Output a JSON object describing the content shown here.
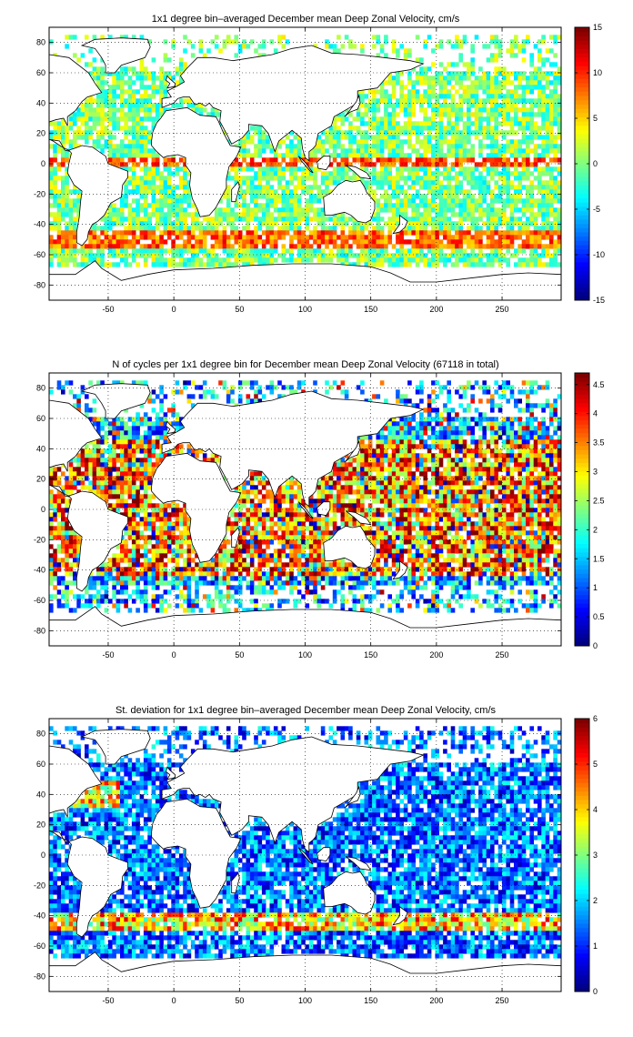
{
  "chart_data": [
    {
      "type": "heatmap",
      "title": "1x1 degree bin–averaged December mean Deep Zonal Velocity, cm/s",
      "xlim": [
        -95,
        295
      ],
      "ylim": [
        -90,
        90
      ],
      "x_ticks": [
        -50,
        0,
        50,
        100,
        150,
        200,
        250
      ],
      "y_ticks": [
        80,
        60,
        40,
        20,
        0,
        -20,
        -40,
        -60,
        -80
      ],
      "colorbar": {
        "colormap": "jet",
        "range": [
          -15,
          15
        ],
        "ticks": [
          15,
          10,
          5,
          0,
          -5,
          -10,
          -15
        ]
      },
      "grid": true,
      "features": [
        {
          "name": "equatorial band",
          "lat": 0,
          "value": 10
        },
        {
          "name": "antarctic circumpolar current",
          "lat": -50,
          "value": 12
        },
        {
          "name": "background ocean",
          "value": 0
        }
      ]
    },
    {
      "type": "heatmap",
      "title": "N of cycles per 1x1 degree bin for December mean Deep Zonal Velocity (67118 in total)",
      "xlim": [
        -95,
        295
      ],
      "ylim": [
        -90,
        90
      ],
      "x_ticks": [
        -50,
        0,
        50,
        100,
        150,
        200,
        250
      ],
      "y_ticks": [
        80,
        60,
        40,
        20,
        0,
        -20,
        -40,
        -60,
        -80
      ],
      "colorbar": {
        "colormap": "jet",
        "range": [
          0,
          4.7
        ],
        "ticks": [
          4.5,
          4,
          3.5,
          3,
          2.5,
          2,
          1.5,
          1,
          0.5,
          0
        ]
      },
      "grid": true,
      "features": [
        {
          "name": "dense subtropical gyres",
          "value": 4.5
        },
        {
          "name": "sparse southern ocean",
          "lat": -55,
          "value": 1
        }
      ]
    },
    {
      "type": "heatmap",
      "title": "St. deviation for 1x1 degree bin–averaged December mean Deep Zonal Velocity, cm/s",
      "xlim": [
        -95,
        295
      ],
      "ylim": [
        -90,
        90
      ],
      "x_ticks": [
        -50,
        0,
        50,
        100,
        150,
        200,
        250
      ],
      "y_ticks": [
        80,
        60,
        40,
        20,
        0,
        -20,
        -40,
        -60,
        -80
      ],
      "colorbar": {
        "colormap": "jet",
        "range": [
          0,
          6
        ],
        "ticks": [
          6,
          5,
          4,
          3,
          2,
          1,
          0
        ]
      },
      "grid": true,
      "features": [
        {
          "name": "gulf stream",
          "value": 5
        },
        {
          "name": "antarctic circumpolar current",
          "lat": -45,
          "value": 5
        },
        {
          "name": "background ocean",
          "value": 1
        }
      ]
    }
  ]
}
